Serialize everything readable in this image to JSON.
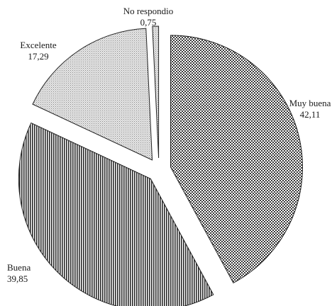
{
  "chart_data": {
    "type": "pie",
    "exploded": true,
    "start_angle_deg": 90,
    "slices": [
      {
        "label": "Muy buena",
        "value": 42.11,
        "display": "42,11",
        "pattern": "checker"
      },
      {
        "label": "Buena",
        "value": 39.85,
        "display": "39,85",
        "pattern": "vertical-lines"
      },
      {
        "label": "Excelente",
        "value": 17.29,
        "display": "17,29",
        "pattern": "fine-dots"
      },
      {
        "label": "No respondio",
        "value": 0.75,
        "display": "0,75",
        "pattern": "fine-dots"
      }
    ],
    "title": "",
    "legend": "none"
  }
}
